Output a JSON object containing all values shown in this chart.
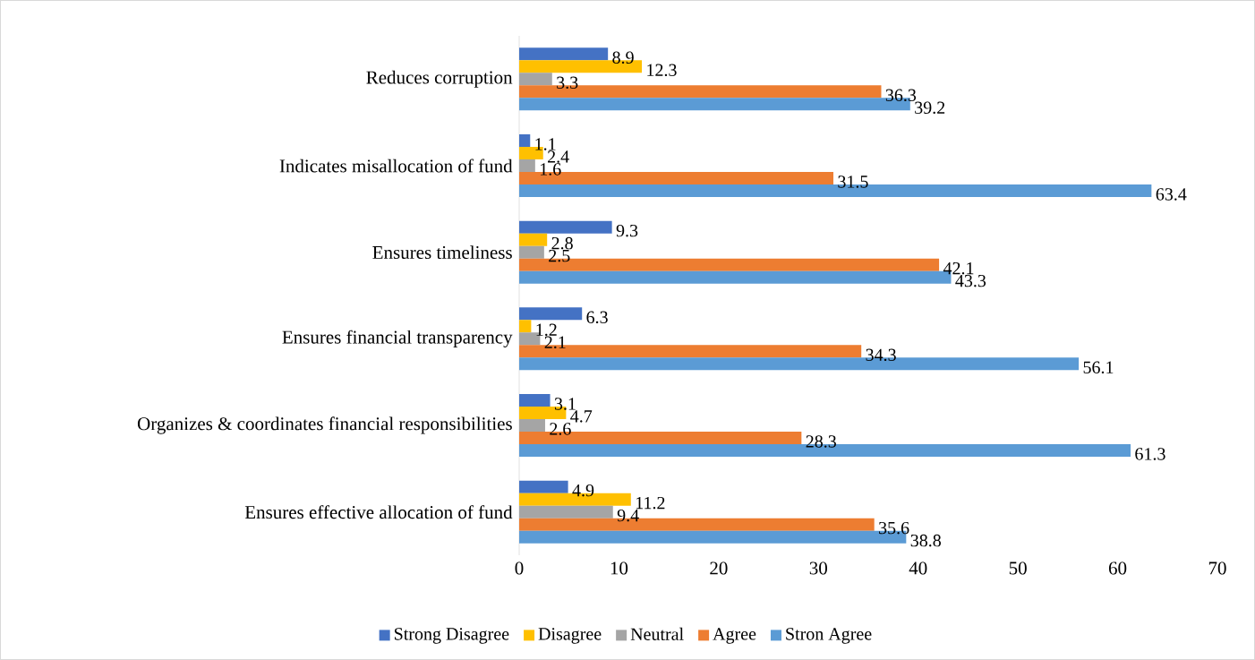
{
  "chart_data": {
    "type": "bar",
    "orientation": "horizontal",
    "categories": [
      "Reduces corruption",
      "Indicates misallocation of fund",
      "Ensures timeliness",
      "Ensures financial transparency",
      "Organizes & coordinates financial responsibilities",
      "Ensures effective allocation of fund"
    ],
    "series": [
      {
        "name": "Strong Disagree",
        "color": "#4472c4",
        "values": [
          8.9,
          1.1,
          9.3,
          6.3,
          3.1,
          4.9
        ]
      },
      {
        "name": "Disagree",
        "color": "#ffc000",
        "values": [
          12.3,
          2.4,
          2.8,
          1.2,
          4.7,
          11.2
        ]
      },
      {
        "name": "Neutral",
        "color": "#a5a5a5",
        "values": [
          3.3,
          1.6,
          2.5,
          2.1,
          2.6,
          9.4
        ]
      },
      {
        "name": "Agree",
        "color": "#ed7d31",
        "values": [
          36.3,
          31.5,
          42.1,
          34.3,
          28.3,
          35.6
        ]
      },
      {
        "name": "Stron Agree",
        "color": "#5b9bd5",
        "values": [
          39.2,
          63.4,
          43.3,
          56.1,
          61.3,
          38.8
        ]
      }
    ],
    "xlim": [
      0,
      70
    ],
    "xticks": [
      0,
      10,
      20,
      30,
      40,
      50,
      60,
      70
    ],
    "data_labels": true,
    "legend": "bottom",
    "grid": false
  }
}
